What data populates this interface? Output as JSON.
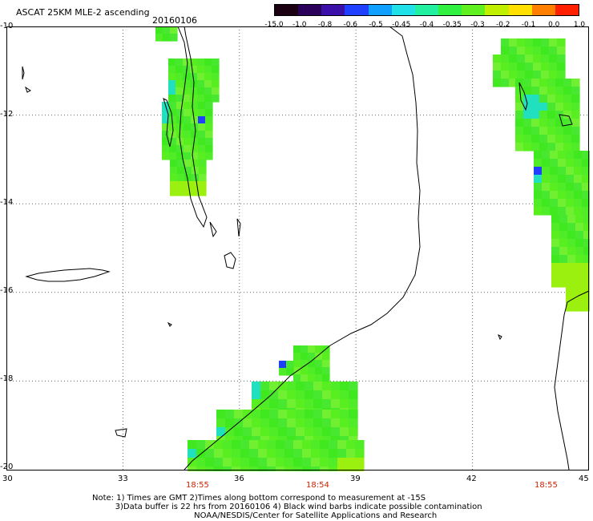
{
  "header": {
    "title": "ASCAT 25KM MLE-2 ascending",
    "date": "20160106"
  },
  "colorbar": {
    "labels": [
      "-15.0",
      "-1.0",
      "-0.8",
      "-0.6",
      "-0.5",
      "-0.45",
      "-0.4",
      "-0.35",
      "-0.3",
      "-0.2",
      "-0.1",
      "0.0",
      "1.0"
    ],
    "colors": [
      "#1a0010",
      "#2a0058",
      "#3a10a8",
      "#2040ff",
      "#10a0ff",
      "#20e0e8",
      "#20f0a0",
      "#30f040",
      "#60f020",
      "#c0f000",
      "#ffe000",
      "#ff8000",
      "#ff2000"
    ]
  },
  "axes": {
    "lat_labels": [
      "-10",
      "-12",
      "-14",
      "-16",
      "-18",
      "-20"
    ],
    "lon_labels": [
      "30",
      "33",
      "36",
      "39",
      "42",
      "45"
    ],
    "time_labels": [
      "18:55",
      "18:54",
      "18:55"
    ]
  },
  "footer": {
    "note": "Note: 1) Times are GMT 2)Times along bottom correspond to measurement at -15S\n         3)Data buffer is 22 hrs from 20160106 4) Black wind barbs indicate possible contamination\n                                        NOAA/NESDIS/Center for Satellite Applications and Research"
  },
  "map_style": {
    "swath_green": "#40e820",
    "swath_light": "#70f030",
    "swath_cyan": "#20e0c0",
    "swath_blue": "#2040ff",
    "swath_yellowgreen": "#9cf010",
    "coast": "#000000"
  }
}
